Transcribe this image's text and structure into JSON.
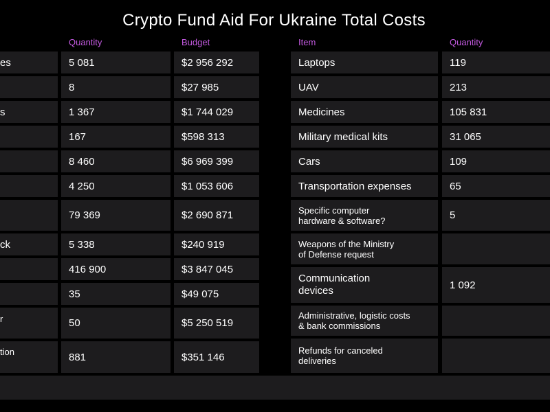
{
  "title": "Crypto Fund Aid For Ukraine Total Costs",
  "colors": {
    "background": "#000000",
    "cell": "#1d1c1e",
    "header_accent": "#c35ae0"
  },
  "left_table": {
    "headers": {
      "quantity": "Quantity",
      "budget": "Budget"
    },
    "rows": [
      {
        "item": "es",
        "quantity": "5 081",
        "budget": "$2 956 292"
      },
      {
        "item": "",
        "quantity": "8",
        "budget": "$27 985"
      },
      {
        "item": "s",
        "quantity": "1 367",
        "budget": "$1 744 029"
      },
      {
        "item": "",
        "quantity": "167",
        "budget": "$598 313"
      },
      {
        "item": "",
        "quantity": "8 460",
        "budget": "$6 969 399"
      },
      {
        "item": "",
        "quantity": "4 250",
        "budget": "$1 053 606"
      },
      {
        "item": "",
        "quantity": "79 369",
        "budget": "$2 690 871"
      },
      {
        "item": "ck",
        "quantity": "5 338",
        "budget": "$240 919"
      },
      {
        "item": "",
        "quantity": "416 900",
        "budget": "$3 847 045"
      },
      {
        "item": "",
        "quantity": "35",
        "budget": "$49 075"
      },
      {
        "item": "r",
        "quantity": "50",
        "budget": "$5 250 519"
      },
      {
        "item": "tion",
        "quantity": "881",
        "budget": "$351 146"
      }
    ]
  },
  "right_table": {
    "headers": {
      "item": "Item",
      "quantity": "Quantity"
    },
    "rows": [
      {
        "item": "Laptops",
        "quantity": "119"
      },
      {
        "item": "UAV",
        "quantity": "213"
      },
      {
        "item": "Medicines",
        "quantity": "105 831"
      },
      {
        "item": "Military medical kits",
        "quantity": "31 065"
      },
      {
        "item": "Cars",
        "quantity": "109"
      },
      {
        "item": "Transportation expenses",
        "quantity": "65"
      },
      {
        "item": "Specific computer hardware & software?",
        "item_line1": "Specific computer",
        "item_line2": "hardware & software?",
        "quantity": "5"
      },
      {
        "item": "Weapons of the Ministry of Defense request",
        "item_line1": "Weapons of the Ministry",
        "item_line2": "of Defense request",
        "quantity": ""
      },
      {
        "item": "Communication devices",
        "item_line1": "Communication",
        "item_line2": "devices",
        "quantity": "1 092"
      },
      {
        "item": "Administrative, logistic costs & bank commissions",
        "item_line1": "Administrative, logistic costs",
        "item_line2": "& bank commissions",
        "quantity": ""
      },
      {
        "item": "Refunds for canceled deliveries",
        "item_line1": "Refunds for canceled",
        "item_line2": "deliveries",
        "quantity": ""
      }
    ]
  }
}
